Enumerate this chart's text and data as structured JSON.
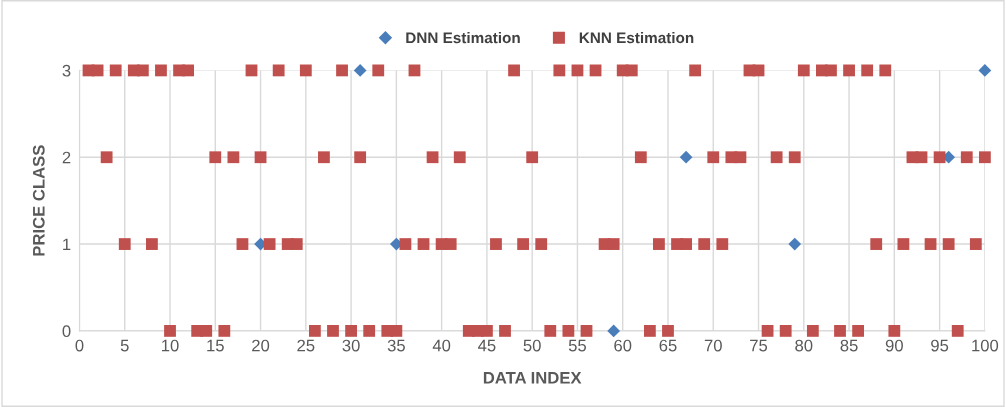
{
  "chart_data": {
    "type": "scatter",
    "xlabel": "DATA INDEX",
    "ylabel": "PRICE CLASS",
    "x": [
      1,
      2,
      3,
      4,
      5,
      6,
      7,
      8,
      9,
      10,
      11,
      12,
      13,
      14,
      15,
      16,
      17,
      18,
      19,
      20,
      21,
      22,
      23,
      24,
      25,
      26,
      27,
      28,
      29,
      30,
      31,
      32,
      33,
      34,
      35,
      36,
      37,
      38,
      39,
      40,
      41,
      42,
      43,
      44,
      45,
      46,
      47,
      48,
      49,
      50,
      51,
      52,
      53,
      54,
      55,
      56,
      57,
      58,
      59,
      60,
      61,
      62,
      63,
      64,
      65,
      66,
      67,
      68,
      69,
      70,
      71,
      72,
      73,
      74,
      75,
      76,
      77,
      78,
      79,
      80,
      81,
      82,
      83,
      84,
      85,
      86,
      87,
      88,
      89,
      90,
      91,
      92,
      93,
      94,
      95,
      96,
      97,
      98,
      99,
      100
    ],
    "series": [
      {
        "name": "DNN Estimation",
        "color": "#4a7ebb",
        "marker": "diamond",
        "values": [
          null,
          null,
          null,
          null,
          null,
          null,
          null,
          null,
          null,
          null,
          null,
          null,
          null,
          null,
          null,
          null,
          null,
          null,
          null,
          1,
          null,
          null,
          null,
          null,
          null,
          null,
          null,
          null,
          null,
          null,
          3,
          null,
          null,
          null,
          1,
          null,
          null,
          null,
          null,
          null,
          null,
          null,
          null,
          null,
          null,
          null,
          null,
          null,
          null,
          null,
          null,
          null,
          null,
          null,
          null,
          null,
          null,
          null,
          0,
          null,
          null,
          null,
          null,
          null,
          null,
          null,
          2,
          null,
          null,
          null,
          null,
          null,
          null,
          null,
          null,
          null,
          null,
          null,
          1,
          null,
          null,
          null,
          null,
          null,
          null,
          null,
          null,
          null,
          null,
          null,
          null,
          null,
          null,
          null,
          null,
          2,
          null,
          null,
          null,
          3
        ]
      },
      {
        "name": "KNN Estimation",
        "color": "#c0504d",
        "marker": "square",
        "values": [
          3,
          3,
          2,
          3,
          1,
          3,
          3,
          1,
          3,
          0,
          3,
          3,
          0,
          0,
          2,
          0,
          2,
          1,
          3,
          2,
          1,
          3,
          1,
          1,
          3,
          0,
          2,
          0,
          3,
          0,
          2,
          0,
          3,
          0,
          0,
          1,
          3,
          1,
          2,
          1,
          1,
          2,
          0,
          0,
          0,
          1,
          0,
          3,
          1,
          2,
          1,
          0,
          3,
          0,
          3,
          0,
          3,
          1,
          1,
          3,
          3,
          2,
          0,
          1,
          0,
          1,
          1,
          3,
          1,
          2,
          1,
          2,
          2,
          3,
          3,
          0,
          2,
          0,
          2,
          3,
          0,
          3,
          3,
          0,
          3,
          0,
          3,
          1,
          3,
          0,
          1,
          2,
          2,
          1,
          2,
          1,
          0,
          2,
          1,
          2
        ]
      }
    ],
    "xlim": [
      0,
      100
    ],
    "xticks": [
      0,
      5,
      10,
      15,
      20,
      25,
      30,
      35,
      40,
      45,
      50,
      55,
      60,
      65,
      70,
      75,
      80,
      85,
      90,
      95,
      100
    ],
    "ylim": [
      0,
      3
    ],
    "yticks": [
      0,
      1,
      2,
      3
    ],
    "grid": true,
    "legend": "top"
  }
}
